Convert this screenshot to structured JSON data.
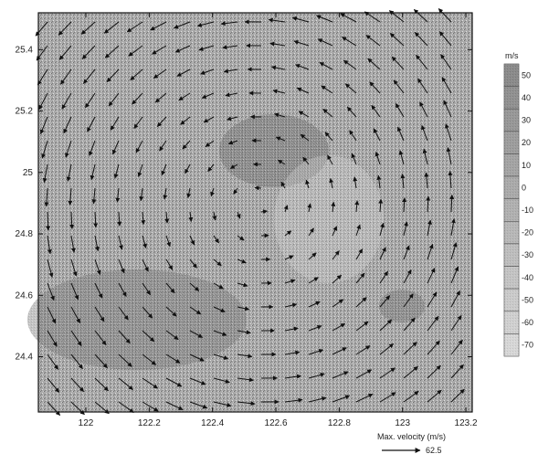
{
  "chart_data": {
    "type": "heatmap",
    "xlim": [
      121.85,
      123.22
    ],
    "ylim": [
      24.22,
      25.52
    ],
    "x_ticks": [
      122,
      122.2,
      122.4,
      122.6,
      122.8,
      123,
      123.2
    ],
    "x_tick_labels": [
      "122",
      "122.2",
      "122.4",
      "122.6",
      "122.8",
      "123",
      "123.2"
    ],
    "y_ticks": [
      24.4,
      24.6,
      24.8,
      25,
      25.2,
      25.4
    ],
    "y_tick_labels": [
      "24.4",
      "24.6",
      "24.8",
      "25",
      "25.2",
      "25.4"
    ],
    "vortex_center": {
      "x": 122.55,
      "y": 24.9
    },
    "rotation": "counterclockwise",
    "colorbar": {
      "unit": "m/s",
      "levels": [
        50,
        40,
        30,
        20,
        10,
        0,
        -10,
        -20,
        -30,
        -40,
        -50,
        -60,
        -70
      ],
      "level_labels": [
        "50",
        "40",
        "30",
        "20",
        "10",
        "0",
        "-10",
        "-20",
        "-30",
        "-40",
        "-50",
        "-60",
        "-70"
      ],
      "min": -70,
      "max": 60
    },
    "max_velocity": {
      "label": "Max. velocity (m/s)",
      "value": "62.5"
    }
  }
}
